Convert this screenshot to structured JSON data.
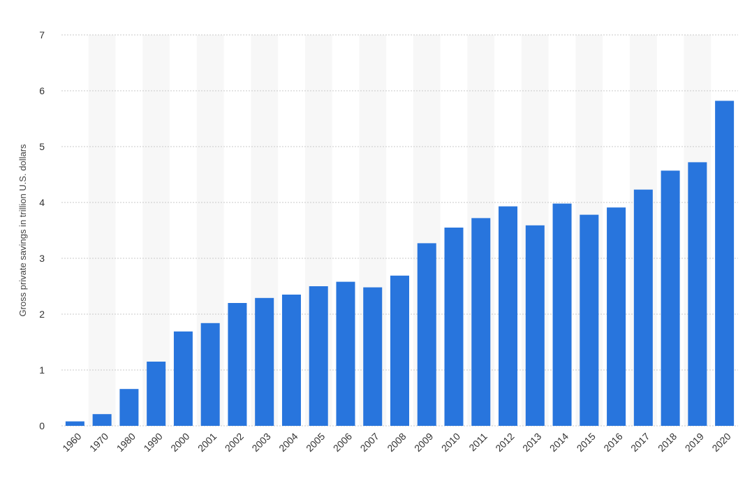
{
  "chart_data": {
    "type": "bar",
    "categories": [
      "1960",
      "1970",
      "1980",
      "1990",
      "2000",
      "2001",
      "2002",
      "2003",
      "2004",
      "2005",
      "2006",
      "2007",
      "2008",
      "2009",
      "2010",
      "2011",
      "2012",
      "2013",
      "2014",
      "2015",
      "2016",
      "2017",
      "2018",
      "2019",
      "2020"
    ],
    "values": [
      0.08,
      0.21,
      0.66,
      1.15,
      1.69,
      1.84,
      2.2,
      2.29,
      2.35,
      2.5,
      2.58,
      2.48,
      2.69,
      3.27,
      3.55,
      3.72,
      3.93,
      3.59,
      3.98,
      3.78,
      3.91,
      4.23,
      4.57,
      4.72,
      5.82
    ],
    "title": "",
    "xlabel": "",
    "ylabel": "Gross private savings in trillion U.S. dollars",
    "ylim": [
      0,
      7
    ],
    "yticks": [
      "0",
      "1",
      "2",
      "3",
      "4",
      "5",
      "6",
      "7"
    ],
    "grid": true,
    "alternating_bands": true,
    "bar_color": "#2875dd",
    "band_color": "#f7f7f7",
    "grid_color": "#c8c8c8"
  }
}
